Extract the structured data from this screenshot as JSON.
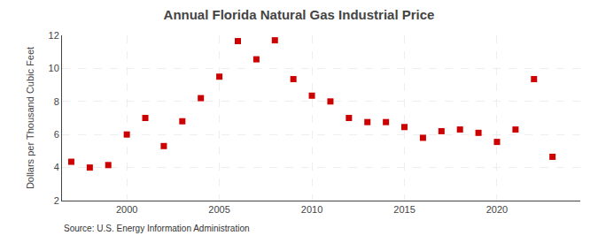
{
  "chart_data": {
    "type": "scatter",
    "title": "Annual Florida Natural Gas Industrial Price",
    "ylabel": "Dollars per Thousand Cubic Feet",
    "annotations": [
      "Source: U.S. Energy Information Administration"
    ],
    "x": [
      1997,
      1998,
      1999,
      2000,
      2001,
      2002,
      2003,
      2004,
      2005,
      2006,
      2007,
      2008,
      2009,
      2010,
      2011,
      2012,
      2013,
      2014,
      2015,
      2016,
      2017,
      2018,
      2019,
      2020,
      2021,
      2022,
      2023
    ],
    "values": [
      4.35,
      4.0,
      4.15,
      6.0,
      7.0,
      5.3,
      6.8,
      8.2,
      9.5,
      11.65,
      10.55,
      11.7,
      9.35,
      8.35,
      8.0,
      7.0,
      6.75,
      6.75,
      6.45,
      5.8,
      6.2,
      6.3,
      6.1,
      5.55,
      6.3,
      9.35,
      4.65
    ],
    "color": "#cc0000",
    "marker": "square",
    "xlim": [
      1996.5,
      2024.5
    ],
    "xticks": [
      2000,
      2005,
      2010,
      2015,
      2020
    ],
    "ylim": [
      2,
      12
    ],
    "yticks": [
      2,
      4,
      6,
      8,
      10,
      12
    ],
    "grid": true
  }
}
